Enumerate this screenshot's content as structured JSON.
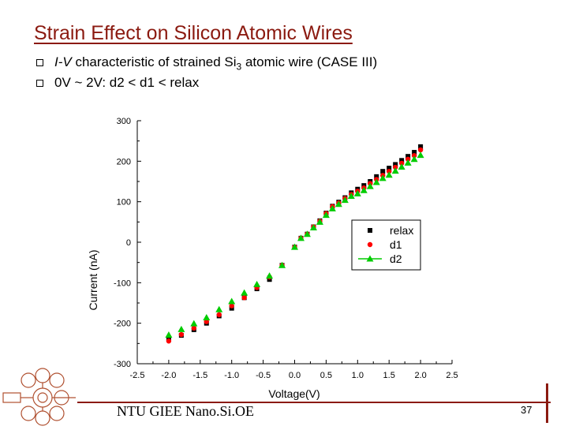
{
  "slide": {
    "title": "Strain Effect on Silicon Atomic Wires",
    "bullets": [
      {
        "prefix": "I-V",
        "text": " characteristic of strained Si",
        "sub": "3",
        "suffix": " atomic wire (CASE III)"
      },
      {
        "prefix": "",
        "text": "0V ~ 2V: d2 < d1 < relax",
        "sub": "",
        "suffix": ""
      }
    ],
    "footer": "NTU GIEE Nano.Si.OE",
    "page_number": "37",
    "colors": {
      "accent": "#8b1a10",
      "relax": "#000000",
      "d1": "#ff0000",
      "d2": "#00cc00"
    }
  },
  "chart_data": {
    "type": "scatter",
    "title": "",
    "xlabel": "Voltage(V)",
    "ylabel": "Current (nA)",
    "xlim": [
      -2.5,
      2.5
    ],
    "ylim": [
      -300,
      300
    ],
    "xticks": [
      "-2.5",
      "-2.0",
      "-1.5",
      "-1.0",
      "-0.5",
      "0.0",
      "0.5",
      "1.0",
      "1.5",
      "2.0",
      "2.5"
    ],
    "yticks": [
      "300",
      "200",
      "100",
      "0",
      "-100",
      "-200",
      "-300"
    ],
    "legend_position": "center-right",
    "series": [
      {
        "name": "relax",
        "marker": "square",
        "color": "#000000",
        "points": [
          [
            -2.0,
            -238
          ],
          [
            -1.8,
            -230
          ],
          [
            -1.6,
            -216
          ],
          [
            -1.4,
            -200
          ],
          [
            -1.2,
            -182
          ],
          [
            -1.0,
            -163
          ],
          [
            -0.8,
            -137
          ],
          [
            -0.6,
            -115
          ],
          [
            -0.4,
            -92
          ],
          [
            -0.2,
            -57
          ],
          [
            0.0,
            -12
          ],
          [
            0.1,
            10
          ],
          [
            0.2,
            20
          ],
          [
            0.3,
            38
          ],
          [
            0.4,
            53
          ],
          [
            0.5,
            72
          ],
          [
            0.6,
            89
          ],
          [
            0.7,
            99
          ],
          [
            0.8,
            110
          ],
          [
            0.9,
            122
          ],
          [
            1.0,
            131
          ],
          [
            1.1,
            140
          ],
          [
            1.2,
            150
          ],
          [
            1.3,
            162
          ],
          [
            1.4,
            175
          ],
          [
            1.5,
            183
          ],
          [
            1.6,
            192
          ],
          [
            1.7,
            202
          ],
          [
            1.8,
            212
          ],
          [
            1.9,
            222
          ],
          [
            2.0,
            236
          ]
        ]
      },
      {
        "name": "d1",
        "marker": "circle",
        "color": "#ff0000",
        "points": [
          [
            -2.0,
            -244
          ],
          [
            -1.8,
            -228
          ],
          [
            -1.6,
            -212
          ],
          [
            -1.4,
            -196
          ],
          [
            -1.2,
            -179
          ],
          [
            -1.0,
            -157
          ],
          [
            -0.8,
            -137
          ],
          [
            -0.6,
            -112
          ],
          [
            -0.4,
            -86
          ],
          [
            -0.2,
            -57
          ],
          [
            0.0,
            -12
          ],
          [
            0.1,
            10
          ],
          [
            0.2,
            20
          ],
          [
            0.3,
            38
          ],
          [
            0.4,
            52
          ],
          [
            0.5,
            71
          ],
          [
            0.6,
            88
          ],
          [
            0.7,
            97
          ],
          [
            0.8,
            108
          ],
          [
            0.9,
            118
          ],
          [
            1.0,
            126
          ],
          [
            1.1,
            134
          ],
          [
            1.2,
            145
          ],
          [
            1.3,
            155
          ],
          [
            1.4,
            165
          ],
          [
            1.5,
            175
          ],
          [
            1.6,
            185
          ],
          [
            1.7,
            195
          ],
          [
            1.8,
            205
          ],
          [
            1.9,
            214
          ],
          [
            2.0,
            228
          ]
        ]
      },
      {
        "name": "d2",
        "marker": "triangle",
        "color": "#00cc00",
        "points": [
          [
            -2.0,
            -229
          ],
          [
            -1.8,
            -215
          ],
          [
            -1.6,
            -201
          ],
          [
            -1.4,
            -186
          ],
          [
            -1.2,
            -166
          ],
          [
            -1.0,
            -146
          ],
          [
            -0.8,
            -125
          ],
          [
            -0.6,
            -104
          ],
          [
            -0.4,
            -83
          ],
          [
            -0.2,
            -57
          ],
          [
            0.0,
            -12
          ],
          [
            0.1,
            10
          ],
          [
            0.2,
            20
          ],
          [
            0.3,
            36
          ],
          [
            0.4,
            50
          ],
          [
            0.5,
            67
          ],
          [
            0.6,
            83
          ],
          [
            0.7,
            94
          ],
          [
            0.8,
            104
          ],
          [
            0.9,
            114
          ],
          [
            1.0,
            120
          ],
          [
            1.1,
            128
          ],
          [
            1.2,
            138
          ],
          [
            1.3,
            148
          ],
          [
            1.4,
            158
          ],
          [
            1.5,
            166
          ],
          [
            1.6,
            176
          ],
          [
            1.7,
            186
          ],
          [
            1.8,
            196
          ],
          [
            1.9,
            205
          ],
          [
            2.0,
            215
          ]
        ]
      }
    ]
  }
}
